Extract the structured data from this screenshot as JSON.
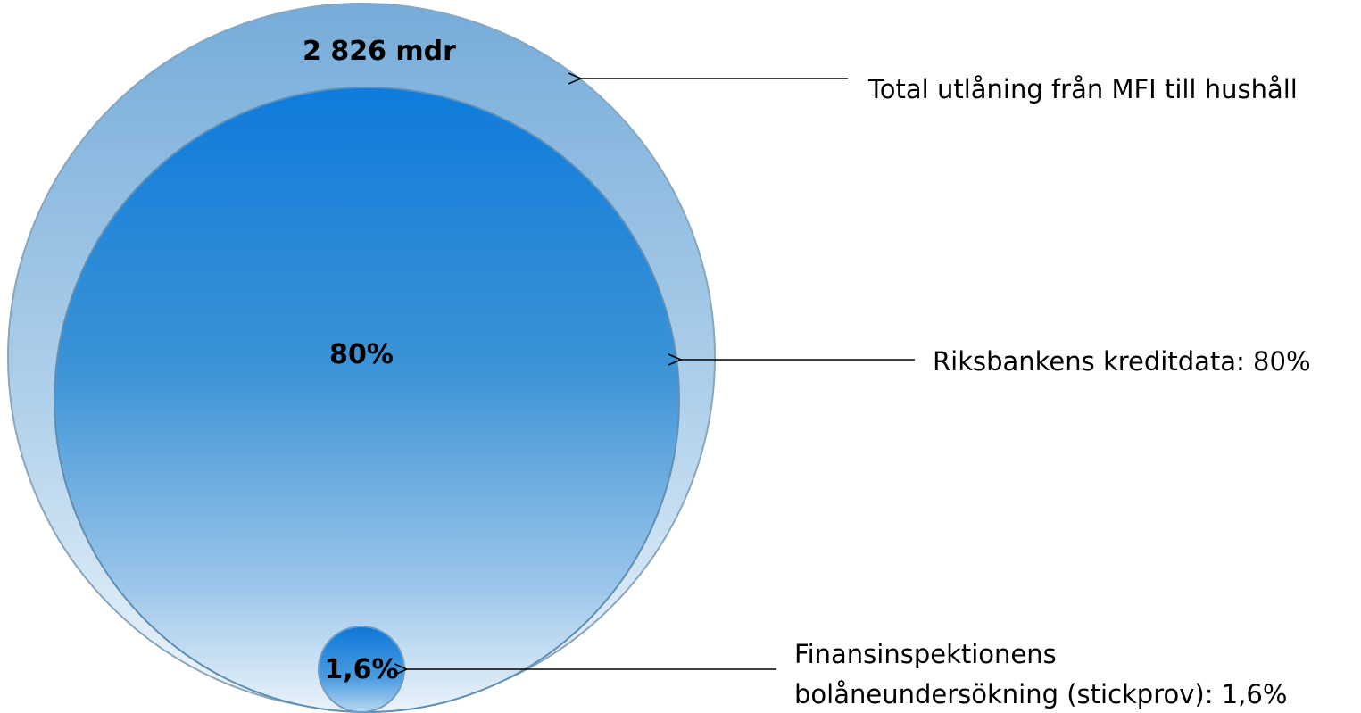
{
  "circles": [
    {
      "label": "2 826 mdr",
      "callout": "Total utlåning från MFI till hushåll"
    },
    {
      "label": "80%",
      "callout": "Riksbankens kreditdata: 80%"
    },
    {
      "label": "1,6%",
      "callout": [
        "Finansinspektionens",
        "bolåneundersökning (stickprov): 1,6%"
      ]
    }
  ]
}
